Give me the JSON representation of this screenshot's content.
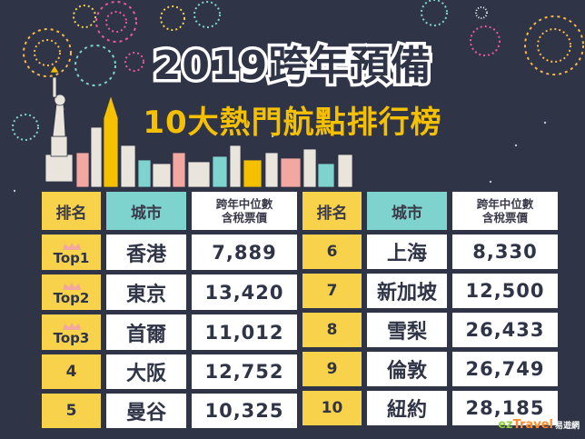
{
  "title": "2019跨年預備",
  "subtitle": "10大熱門航點排行榜",
  "headers": {
    "rank": "排名",
    "city": "城市",
    "price_line1": "跨年中位數",
    "price_line2": "含稅票價"
  },
  "left_rows": [
    {
      "rank": "Top1",
      "city": "香港",
      "price": "7,889",
      "crown": true
    },
    {
      "rank": "Top2",
      "city": "東京",
      "price": "13,420",
      "crown": true
    },
    {
      "rank": "Top3",
      "city": "首爾",
      "price": "11,012",
      "crown": true
    },
    {
      "rank": "4",
      "city": "大阪",
      "price": "12,752",
      "crown": false
    },
    {
      "rank": "5",
      "city": "曼谷",
      "price": "10,325",
      "crown": false
    }
  ],
  "right_rows": [
    {
      "rank": "6",
      "city": "上海",
      "price": "8,330"
    },
    {
      "rank": "7",
      "city": "新加坡",
      "price": "12,500"
    },
    {
      "rank": "8",
      "city": "雪梨",
      "price": "26,433"
    },
    {
      "rank": "9",
      "city": "倫敦",
      "price": "26,749"
    },
    {
      "rank": "10",
      "city": "紐約",
      "price": "28,185"
    }
  ],
  "logo": {
    "part1": "ez",
    "part2": "Travel",
    "part3": "易遊網"
  },
  "colors": {
    "background": "#2f3446",
    "rank_cell": "#f8d24a",
    "city_header": "#7fd3cf",
    "subtitle": "#f5c000",
    "crown": "#f2a7a0"
  }
}
